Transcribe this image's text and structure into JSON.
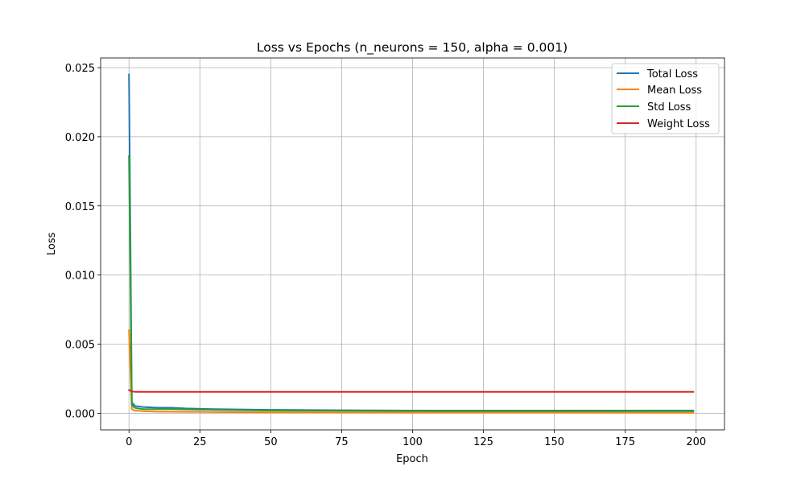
{
  "chart_data": {
    "type": "line",
    "title": "Loss vs Epochs (n_neurons = 150, alpha = 0.001)",
    "xlabel": "Epoch",
    "ylabel": "Loss",
    "xlim": [
      -10,
      210
    ],
    "ylim": [
      -0.0012,
      0.0257
    ],
    "xticks": [
      0,
      25,
      50,
      75,
      100,
      125,
      150,
      175,
      200
    ],
    "xtick_labels": [
      "0",
      "25",
      "50",
      "75",
      "100",
      "125",
      "150",
      "175",
      "200"
    ],
    "yticks": [
      0.0,
      0.005,
      0.01,
      0.015,
      0.02,
      0.025
    ],
    "ytick_labels": [
      "0.000",
      "0.005",
      "0.010",
      "0.015",
      "0.020",
      "0.025"
    ],
    "grid": true,
    "legend_position": "top-right",
    "series": [
      {
        "name": "Total Loss",
        "color": "#1f77b4",
        "x": [
          0,
          1,
          2,
          3,
          5,
          10,
          15,
          20,
          30,
          50,
          75,
          100,
          150,
          199
        ],
        "y": [
          0.0245,
          0.0008,
          0.00055,
          0.0005,
          0.00045,
          0.0004,
          0.0004,
          0.00035,
          0.0003,
          0.00025,
          0.00022,
          0.0002,
          0.0002,
          0.0002
        ]
      },
      {
        "name": "Mean Loss",
        "color": "#ff7f0e",
        "x": [
          0,
          1,
          2,
          3,
          5,
          10,
          20,
          30,
          50,
          75,
          100,
          150,
          199
        ],
        "y": [
          0.006,
          0.0003,
          0.0002,
          0.00018,
          0.00015,
          0.00012,
          0.0001,
          9e-05,
          7e-05,
          6e-05,
          5e-05,
          5e-05,
          4e-05
        ]
      },
      {
        "name": "Std Loss",
        "color": "#2ca02c",
        "x": [
          0,
          1,
          2,
          3,
          5,
          10,
          15,
          20,
          30,
          50,
          75,
          100,
          150,
          199
        ],
        "y": [
          0.0186,
          0.0006,
          0.0004,
          0.00035,
          0.0003,
          0.0003,
          0.0003,
          0.00028,
          0.00025,
          0.0002,
          0.00018,
          0.00017,
          0.00016,
          0.00015
        ]
      },
      {
        "name": "Weight Loss",
        "color": "#d62728",
        "x": [
          0,
          1,
          2,
          3,
          5,
          10,
          50,
          100,
          150,
          199
        ],
        "y": [
          0.00168,
          0.00158,
          0.00156,
          0.00155,
          0.00155,
          0.00155,
          0.00155,
          0.00155,
          0.00155,
          0.00155
        ]
      }
    ]
  }
}
